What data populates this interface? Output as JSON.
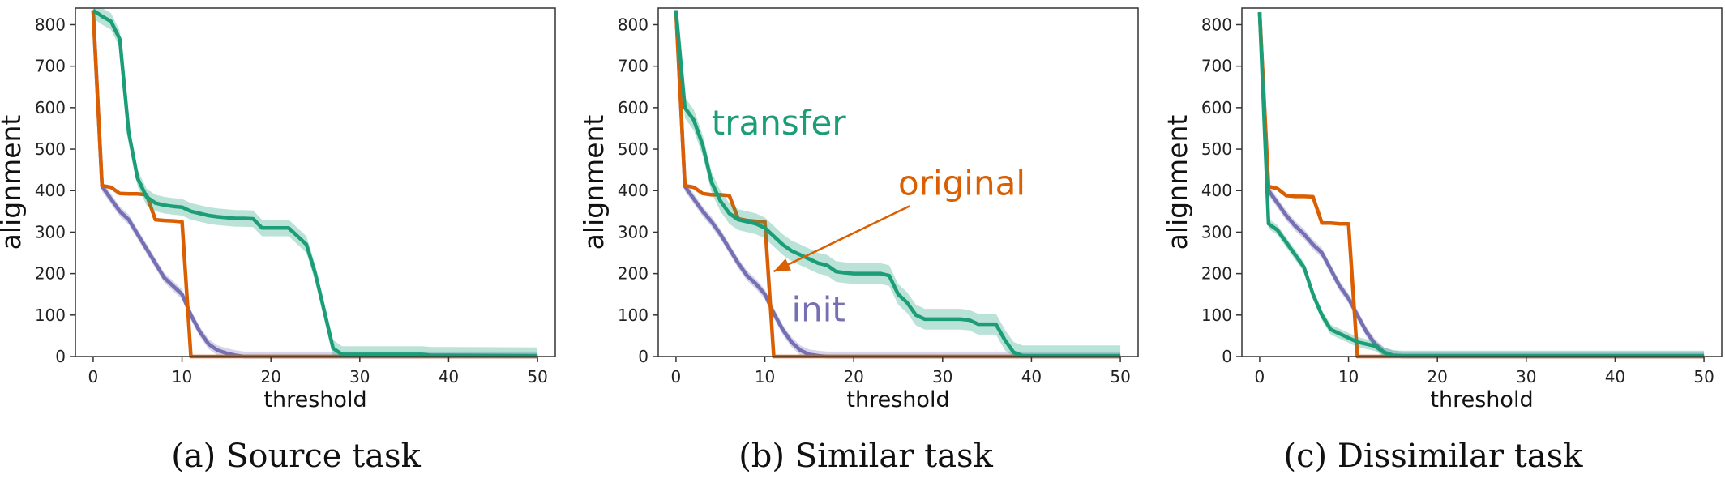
{
  "colors": {
    "transfer": "#1b9e77",
    "original": "#d95f02",
    "init": "#7570b3",
    "axis": "#333333"
  },
  "chart_data": [
    {
      "type": "line",
      "caption": "(a) Source task",
      "xlabel": "threshold",
      "ylabel": "alignment",
      "xlim": [
        -2,
        52
      ],
      "ylim": [
        0,
        840
      ],
      "xticks": [
        0,
        10,
        20,
        30,
        40,
        50
      ],
      "yticks": [
        0,
        100,
        200,
        300,
        400,
        500,
        600,
        700,
        800
      ],
      "grid": false,
      "series": [
        {
          "key": "transfer",
          "band": 20,
          "x": [
            0,
            1,
            2,
            3,
            4,
            5,
            6,
            7,
            8,
            9,
            10,
            11,
            12,
            13,
            14,
            15,
            16,
            17,
            18,
            19,
            20,
            21,
            22,
            23,
            24,
            25,
            26,
            27,
            28,
            29,
            30,
            35,
            37,
            38,
            40,
            50
          ],
          "y": [
            835,
            820,
            808,
            765,
            540,
            430,
            385,
            370,
            365,
            362,
            360,
            350,
            345,
            340,
            337,
            335,
            333,
            333,
            332,
            310,
            310,
            310,
            310,
            290,
            270,
            200,
            110,
            20,
            5,
            5,
            5,
            5,
            5,
            3,
            3,
            2
          ]
        },
        {
          "key": "original",
          "band": 0,
          "x": [
            0,
            1,
            2,
            3,
            4,
            5,
            6,
            7,
            8,
            9,
            10,
            11,
            12,
            15,
            20,
            50
          ],
          "y": [
            835,
            412,
            408,
            393,
            392,
            392,
            390,
            330,
            328,
            327,
            325,
            0,
            0,
            0,
            0,
            0
          ]
        },
        {
          "key": "init",
          "band": 12,
          "x": [
            0,
            1,
            2,
            3,
            4,
            5,
            6,
            7,
            8,
            9,
            10,
            11,
            12,
            13,
            14,
            15,
            16,
            17,
            18,
            20,
            50
          ],
          "y": [
            835,
            410,
            380,
            350,
            330,
            295,
            260,
            225,
            190,
            170,
            150,
            100,
            60,
            30,
            15,
            8,
            3,
            0,
            0,
            0,
            0
          ]
        }
      ]
    },
    {
      "type": "line",
      "caption": "(b) Similar task",
      "xlabel": "threshold",
      "ylabel": "alignment",
      "xlim": [
        -2,
        52
      ],
      "ylim": [
        0,
        840
      ],
      "xticks": [
        0,
        10,
        20,
        30,
        40,
        50
      ],
      "yticks": [
        0,
        100,
        200,
        300,
        400,
        500,
        600,
        700,
        800
      ],
      "grid": false,
      "annotations": [
        {
          "key": "transfer",
          "text": "transfer",
          "x": 4,
          "y": 535
        },
        {
          "key": "original",
          "text": "original",
          "x": 25,
          "y": 390,
          "arrow_to": [
            11,
            205
          ]
        },
        {
          "key": "init",
          "text": "init",
          "x": 13,
          "y": 85
        }
      ],
      "series": [
        {
          "key": "transfer",
          "band": 25,
          "x": [
            0,
            1,
            2,
            3,
            4,
            5,
            6,
            7,
            8,
            9,
            10,
            11,
            12,
            13,
            14,
            15,
            16,
            17,
            18,
            19,
            20,
            21,
            22,
            23,
            24,
            25,
            26,
            27,
            28,
            29,
            30,
            31,
            32,
            33,
            34,
            35,
            36,
            37,
            38,
            39,
            40,
            42,
            50
          ],
          "y": [
            835,
            600,
            570,
            510,
            420,
            375,
            345,
            330,
            325,
            320,
            310,
            290,
            270,
            255,
            245,
            235,
            225,
            220,
            205,
            202,
            200,
            200,
            200,
            200,
            195,
            150,
            130,
            100,
            90,
            90,
            90,
            90,
            90,
            88,
            78,
            78,
            78,
            40,
            10,
            2,
            2,
            2,
            2
          ]
        },
        {
          "key": "original",
          "band": 0,
          "x": [
            0,
            1,
            2,
            3,
            4,
            5,
            6,
            7,
            8,
            9,
            10,
            11,
            12,
            15,
            20,
            50
          ],
          "y": [
            835,
            412,
            408,
            393,
            390,
            390,
            388,
            332,
            328,
            326,
            325,
            0,
            0,
            0,
            0,
            0
          ]
        },
        {
          "key": "init",
          "band": 12,
          "x": [
            0,
            1,
            2,
            3,
            4,
            5,
            6,
            7,
            8,
            9,
            10,
            11,
            12,
            13,
            14,
            15,
            16,
            17,
            18,
            20,
            50
          ],
          "y": [
            835,
            410,
            380,
            350,
            325,
            295,
            260,
            225,
            195,
            175,
            150,
            105,
            65,
            35,
            15,
            5,
            2,
            0,
            0,
            0,
            0
          ]
        }
      ]
    },
    {
      "type": "line",
      "caption": "(c) Dissimilar task",
      "xlabel": "threshold",
      "ylabel": "alignment",
      "xlim": [
        -2,
        52
      ],
      "ylim": [
        0,
        840
      ],
      "xticks": [
        0,
        10,
        20,
        30,
        40,
        50
      ],
      "yticks": [
        0,
        100,
        200,
        300,
        400,
        500,
        600,
        700,
        800
      ],
      "grid": false,
      "series": [
        {
          "key": "transfer",
          "band": 12,
          "x": [
            0,
            1,
            2,
            3,
            4,
            5,
            6,
            7,
            8,
            9,
            10,
            11,
            12,
            13,
            14,
            15,
            16,
            20,
            50
          ],
          "y": [
            830,
            320,
            305,
            275,
            245,
            215,
            150,
            100,
            65,
            55,
            45,
            35,
            30,
            25,
            10,
            3,
            2,
            2,
            2
          ]
        },
        {
          "key": "original",
          "band": 0,
          "x": [
            0,
            1,
            2,
            3,
            4,
            5,
            6,
            7,
            8,
            9,
            10,
            11,
            12,
            15,
            20,
            50
          ],
          "y": [
            830,
            410,
            405,
            388,
            386,
            386,
            385,
            322,
            322,
            320,
            320,
            0,
            0,
            0,
            0,
            0
          ]
        },
        {
          "key": "init",
          "band": 12,
          "x": [
            0,
            1,
            2,
            3,
            4,
            5,
            6,
            7,
            8,
            9,
            10,
            11,
            12,
            13,
            14,
            15,
            16,
            17,
            18,
            20,
            50
          ],
          "y": [
            830,
            400,
            370,
            340,
            315,
            295,
            270,
            250,
            210,
            170,
            140,
            100,
            60,
            30,
            10,
            3,
            0,
            0,
            0,
            0,
            0
          ]
        }
      ]
    }
  ]
}
